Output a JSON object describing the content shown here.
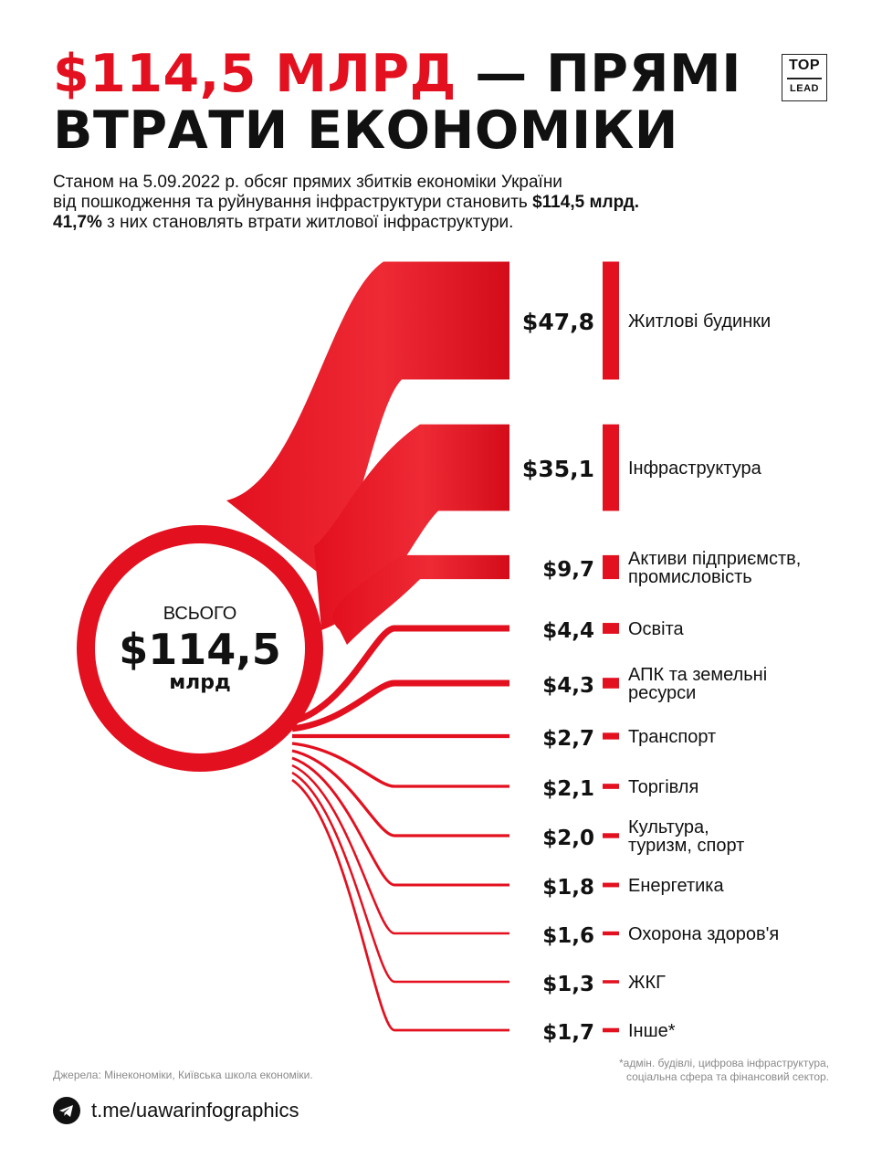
{
  "header": {
    "title_accent": "$114,5 МЛРД",
    "title_rest": " — ПРЯМІ ВТРАТИ ЕКОНОМІКИ",
    "logo_top": "TOP",
    "logo_bottom": "LEAD"
  },
  "subtitle": {
    "line1": "Станом на 5.09.2022 р. обсяг прямих збитків економіки України",
    "line2_text": "від пошкодження та руйнування інфраструктури становить ",
    "line2_bold": "$114,5 млрд.",
    "line3_bold": "41,7%",
    "line3_text": " з них становлять втрати житлової інфраструктури."
  },
  "total": {
    "label": "ВСЬОГО",
    "value": "$114,5",
    "unit": "млрд"
  },
  "chart_data": {
    "type": "sankey",
    "total": 114.5,
    "unit": "млрд $",
    "items": [
      {
        "value_label": "$47,8",
        "value": 47.8,
        "lines": [
          "Житлові будинки"
        ]
      },
      {
        "value_label": "$35,1",
        "value": 35.1,
        "lines": [
          "Інфраструктура"
        ]
      },
      {
        "value_label": "$9,7",
        "value": 9.7,
        "lines": [
          "Активи підприємств,",
          "промисловість"
        ]
      },
      {
        "value_label": "$4,4",
        "value": 4.4,
        "lines": [
          "Освіта"
        ]
      },
      {
        "value_label": "$4,3",
        "value": 4.3,
        "lines": [
          "АПК та земельні",
          "ресурси"
        ]
      },
      {
        "value_label": "$2,7",
        "value": 2.7,
        "lines": [
          "Транспорт"
        ]
      },
      {
        "value_label": "$2,1",
        "value": 2.1,
        "lines": [
          "Торгівля"
        ]
      },
      {
        "value_label": "$2,0",
        "value": 2.0,
        "lines": [
          "Культура,",
          "туризм, спорт"
        ]
      },
      {
        "value_label": "$1,8",
        "value": 1.8,
        "lines": [
          "Енергетика"
        ]
      },
      {
        "value_label": "$1,6",
        "value": 1.6,
        "lines": [
          "Охорона здоров'я"
        ]
      },
      {
        "value_label": "$1,3",
        "value": 1.3,
        "lines": [
          "ЖКГ"
        ]
      },
      {
        "value_label": "$1,7",
        "value": 1.7,
        "lines": [
          "Інше*"
        ]
      }
    ]
  },
  "colors": {
    "accent": "#e3101f",
    "accent_dark": "#c80b17",
    "text": "#111111"
  },
  "footer": {
    "sources": "Джерела: Мінекономіки, Київська школа економіки.",
    "footnote_line1": "*адмін. будівлі, цифрова інфраструктура,",
    "footnote_line2": "соціальна сфера та фінансовий сектор.",
    "telegram_link": "t.me/uawarinfographics",
    "telegram_icon": "telegram-icon"
  }
}
